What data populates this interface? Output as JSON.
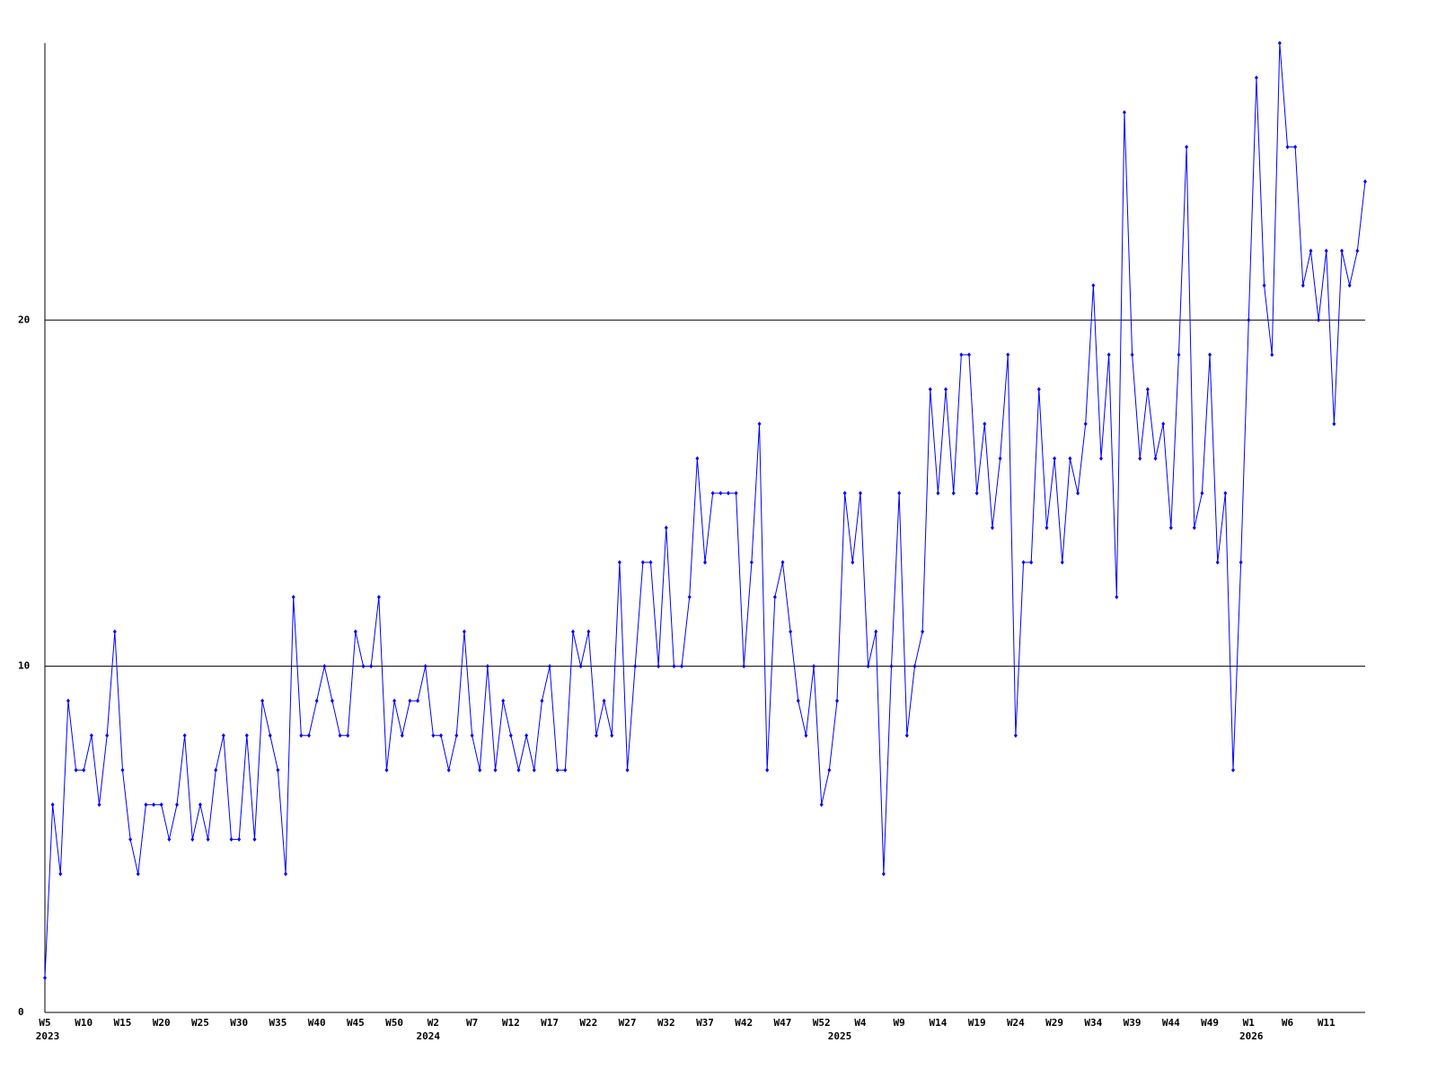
{
  "chart_data": {
    "type": "line",
    "categories": [
      "W5",
      null,
      null,
      null,
      null,
      "W10",
      null,
      null,
      null,
      null,
      "W15",
      null,
      null,
      null,
      null,
      "W20",
      null,
      null,
      null,
      null,
      "W25",
      null,
      null,
      null,
      null,
      "W30",
      null,
      null,
      null,
      null,
      "W35",
      null,
      null,
      null,
      null,
      "W40",
      null,
      null,
      null,
      null,
      "W45",
      null,
      null,
      null,
      null,
      "W50",
      null,
      null,
      null,
      null,
      "W2",
      null,
      null,
      null,
      null,
      "W7",
      null,
      null,
      null,
      null,
      "W12",
      null,
      null,
      null,
      null,
      "W17",
      null,
      null,
      null,
      null,
      "W22",
      null,
      null,
      null,
      null,
      "W27",
      null,
      null,
      null,
      null,
      "W32",
      null,
      null,
      null,
      null,
      "W37",
      null,
      null,
      null,
      null,
      "W42",
      null,
      null,
      null,
      null,
      "W47",
      null,
      null,
      null,
      null,
      "W52",
      null,
      null,
      null,
      null,
      "W4",
      null,
      null,
      null,
      null,
      "W9",
      null,
      null,
      null,
      null,
      "W14",
      null,
      null,
      null,
      null,
      "W19",
      null,
      null,
      null,
      null,
      "W24",
      null,
      null,
      null,
      null,
      "W29",
      null,
      null,
      null,
      null,
      "W34",
      null,
      null,
      null,
      null,
      "W39",
      null,
      null,
      null,
      null,
      "W44",
      null,
      null,
      null,
      null,
      "W49",
      null,
      null,
      null,
      null,
      "W1",
      null,
      null,
      null,
      null,
      "W6",
      null,
      null,
      null,
      null,
      "W11",
      null,
      null,
      null,
      null,
      null
    ],
    "year_labels": [
      {
        "value": 0,
        "label": "2023"
      },
      {
        "value": 49,
        "label": "2024"
      },
      {
        "value": 102,
        "label": "2025"
      },
      {
        "value": 155,
        "label": "2026"
      }
    ],
    "series": [
      {
        "color": "#0000ff",
        "values": [
          1,
          6,
          4,
          9,
          7,
          7,
          8,
          6,
          8,
          11,
          7,
          5,
          4,
          6,
          6,
          6,
          5,
          6,
          8,
          5,
          6,
          5,
          7,
          8,
          5,
          5,
          8,
          5,
          9,
          8,
          7,
          4,
          12,
          8,
          8,
          9,
          10,
          9,
          8,
          8,
          11,
          10,
          10,
          12,
          7,
          9,
          8,
          9,
          9,
          10,
          8,
          8,
          7,
          8,
          11,
          8,
          7,
          10,
          7,
          9,
          8,
          7,
          8,
          7,
          9,
          10,
          7,
          7,
          11,
          10,
          11,
          8,
          9,
          8,
          13,
          7,
          10,
          13,
          13,
          10,
          14,
          10,
          10,
          12,
          16,
          13,
          15,
          15,
          15,
          15,
          10,
          13,
          17,
          7,
          12,
          13,
          11,
          9,
          8,
          10,
          6,
          7,
          9,
          15,
          13,
          15,
          10,
          11,
          4,
          10,
          15,
          8,
          10,
          11,
          18,
          15,
          18,
          15,
          19,
          19,
          15,
          17,
          14,
          16,
          19,
          8,
          13,
          13,
          18,
          14,
          16,
          13,
          16,
          15,
          17,
          21,
          16,
          19,
          12,
          26,
          19,
          16,
          18,
          16,
          17,
          14,
          19,
          25,
          14,
          15,
          19,
          13,
          15,
          7,
          13,
          20,
          27,
          21,
          19,
          28,
          25,
          25,
          21,
          22,
          20,
          22,
          17,
          22,
          21,
          22,
          24
        ]
      }
    ],
    "ylim": [
      0,
      28
    ],
    "yticks": [
      0,
      10,
      20
    ],
    "grid": true
  }
}
